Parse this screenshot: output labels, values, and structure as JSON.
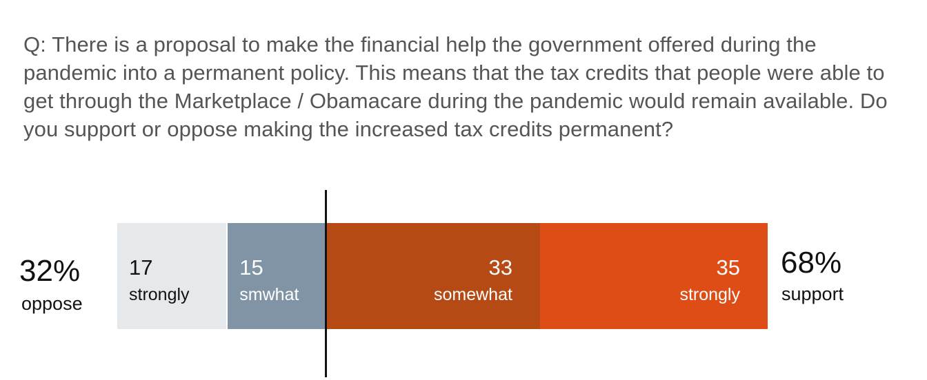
{
  "question": "Q: There is a proposal to make the financial help the government offered during the pandemic into a permanent policy. This means that the tax credits that people were able to get through the Marketplace / Obamacare during the pandemic would remain available. Do you support or oppose making the increased tax credits permanent?",
  "oppose": {
    "value": "32%",
    "label": "oppose"
  },
  "support": {
    "value": "68%",
    "label": "support"
  },
  "chart_data": {
    "type": "bar",
    "orientation": "horizontal-stacked",
    "title": "",
    "unit": "%",
    "categories": [
      "strongly",
      "smwhat",
      "somewhat",
      "strongly"
    ],
    "values": [
      17,
      15,
      33,
      35
    ],
    "segments": [
      {
        "value": 17,
        "number": "17",
        "label": "strongly",
        "side": "oppose",
        "color": "#e6e9ec",
        "text_color": "#111111"
      },
      {
        "value": 15,
        "number": "15",
        "label": "smwhat",
        "side": "oppose",
        "color": "#8094a6",
        "text_color": "#ffffff"
      },
      {
        "value": 33,
        "number": "33",
        "label": "somewhat",
        "side": "support",
        "color": "#b54a14",
        "text_color": "#ffffff"
      },
      {
        "value": 35,
        "number": "35",
        "label": "strongly",
        "side": "support",
        "color": "#dd4d15",
        "text_color": "#ffffff"
      }
    ],
    "totals": {
      "oppose": 32,
      "support": 68
    }
  }
}
